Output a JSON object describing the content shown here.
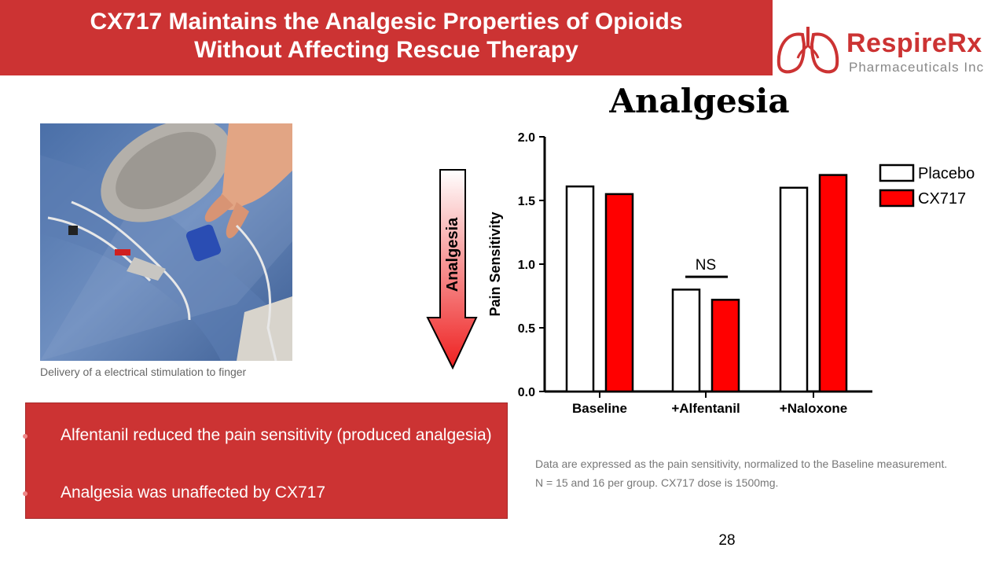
{
  "slide": {
    "title_line1": "CX717 Maintains the Analgesic Properties of Opioids",
    "title_line2": "Without Affecting Rescue Therapy",
    "page_number": "28",
    "brand_color": "#cc3333"
  },
  "logo": {
    "name": "RespireRx",
    "subtitle": "Pharmaceuticals Inc",
    "icon": "lungs-icon"
  },
  "photo": {
    "icon": "hand-electrode-photo",
    "caption": "Delivery of a electrical stimulation to finger"
  },
  "arrow": {
    "label": "Analgesia",
    "icon": "down-arrow-icon"
  },
  "bullets": [
    "Alfentanil reduced the pain sensitivity (produced analgesia)",
    "Analgesia was unaffected by CX717"
  ],
  "footnotes": [
    "Data are expressed as the pain sensitivity, normalized to the Baseline measurement.",
    "N = 15 and 16 per group. CX717 dose is 1500mg."
  ],
  "chart_data": {
    "type": "bar",
    "title": "Analgesia",
    "ylabel": "Pain Sensitivity",
    "xlabel": "",
    "categories": [
      "Baseline",
      "+Alfentanil",
      "+Naloxone"
    ],
    "series": [
      {
        "name": "Placebo",
        "values": [
          1.61,
          0.8,
          1.6
        ],
        "color": "#ffffff"
      },
      {
        "name": "CX717",
        "values": [
          1.55,
          0.72,
          1.7
        ],
        "color": "#ff0000"
      }
    ],
    "ylim": [
      0,
      2.0
    ],
    "yticks": [
      "0.0",
      "0.5",
      "1.0",
      "1.5",
      "2.0"
    ],
    "annotation": "NS",
    "legend_position": "top-right",
    "grid": false
  }
}
